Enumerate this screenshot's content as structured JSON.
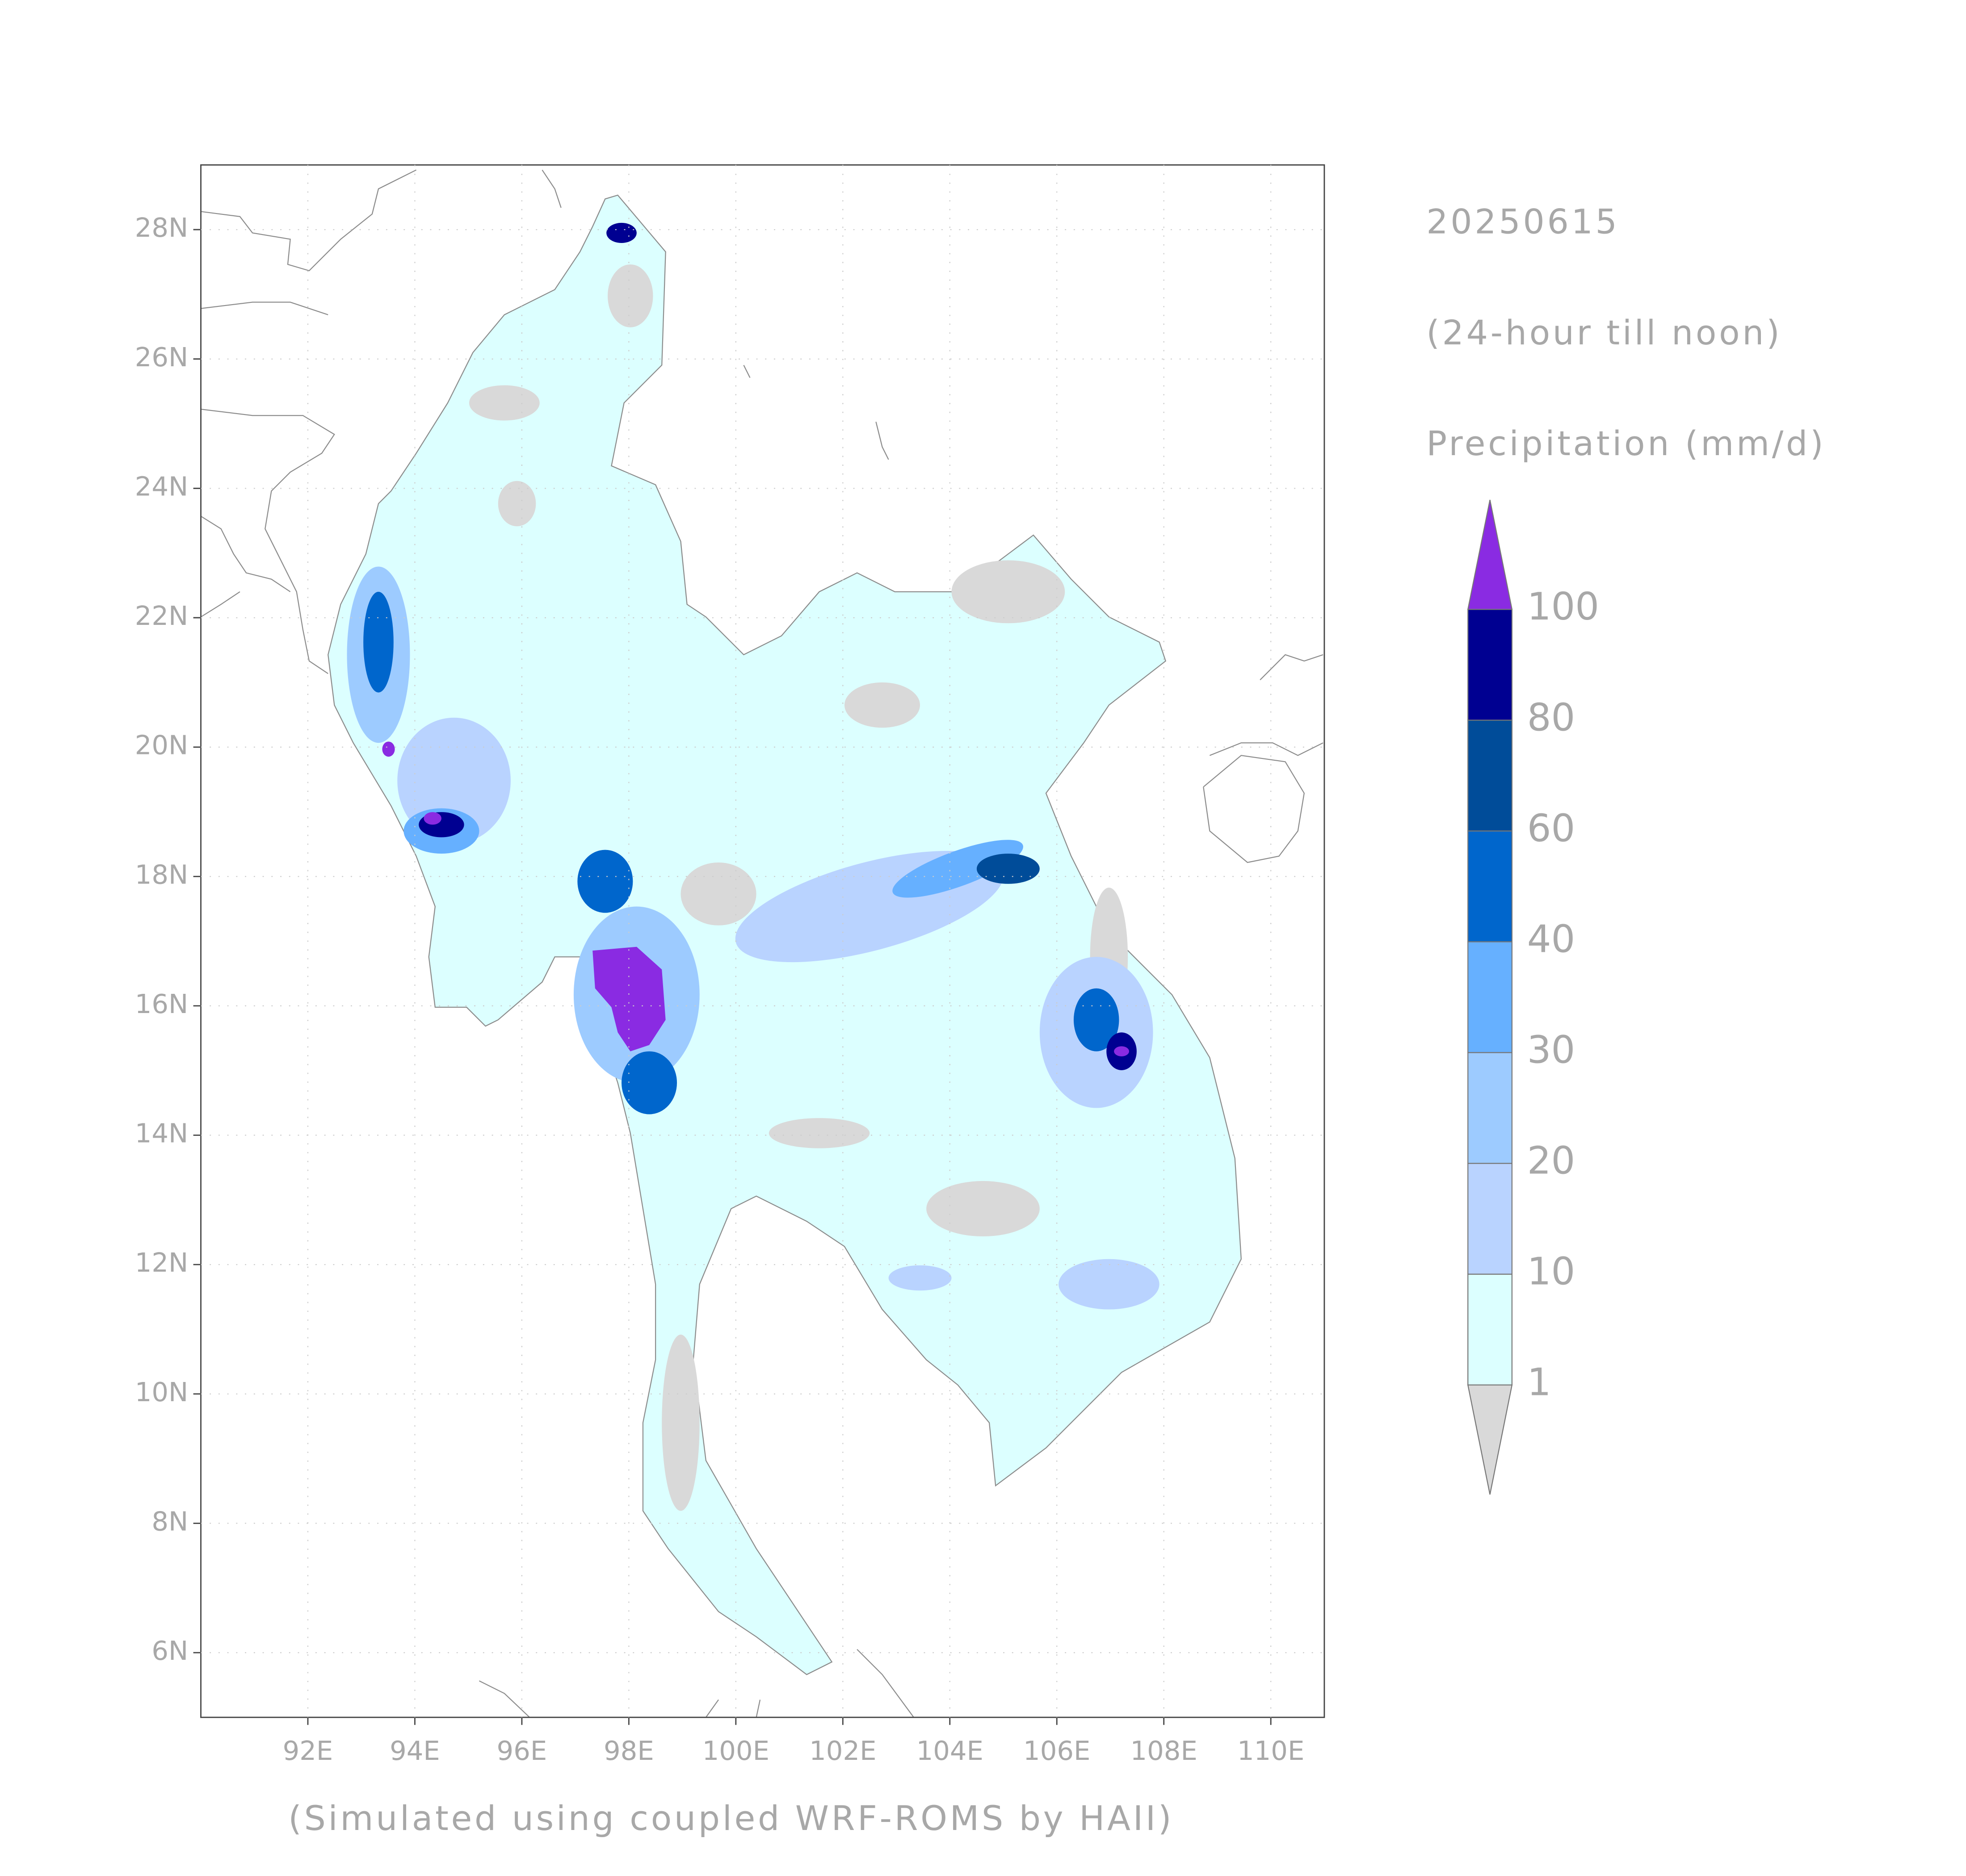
{
  "title": "20250615",
  "subtitle": "(24-hour till noon)",
  "variable": "Precipitation (mm/d)",
  "source_note": "(Simulated using coupled WRF-ROMS by HAII)",
  "map": {
    "xlim": [
      90,
      111
    ],
    "ylim": [
      5,
      29
    ],
    "xticks": [
      {
        "value": 92,
        "label": "92E"
      },
      {
        "value": 94,
        "label": "94E"
      },
      {
        "value": 96,
        "label": "96E"
      },
      {
        "value": 98,
        "label": "98E"
      },
      {
        "value": 100,
        "label": "100E"
      },
      {
        "value": 102,
        "label": "102E"
      },
      {
        "value": 104,
        "label": "104E"
      },
      {
        "value": 106,
        "label": "106E"
      },
      {
        "value": 108,
        "label": "108E"
      },
      {
        "value": 110,
        "label": "110E"
      }
    ],
    "yticks": [
      {
        "value": 6,
        "label": "6N"
      },
      {
        "value": 8,
        "label": "8N"
      },
      {
        "value": 10,
        "label": "10N"
      },
      {
        "value": 12,
        "label": "12N"
      },
      {
        "value": 14,
        "label": "14N"
      },
      {
        "value": 16,
        "label": "16N"
      },
      {
        "value": 18,
        "label": "18N"
      },
      {
        "value": 20,
        "label": "20N"
      },
      {
        "value": 22,
        "label": "22N"
      },
      {
        "value": 24,
        "label": "24N"
      },
      {
        "value": 26,
        "label": "26N"
      },
      {
        "value": 28,
        "label": "28N"
      }
    ],
    "grid": true
  },
  "colorbar": {
    "levels": [
      1,
      10,
      20,
      30,
      40,
      60,
      80,
      100
    ],
    "colors": [
      "#d9d9d9",
      "#dcffff",
      "#b9d3ff",
      "#9dcbff",
      "#66b0ff",
      "#0066cc",
      "#004c99",
      "#000091",
      "#8a2be2"
    ]
  }
}
